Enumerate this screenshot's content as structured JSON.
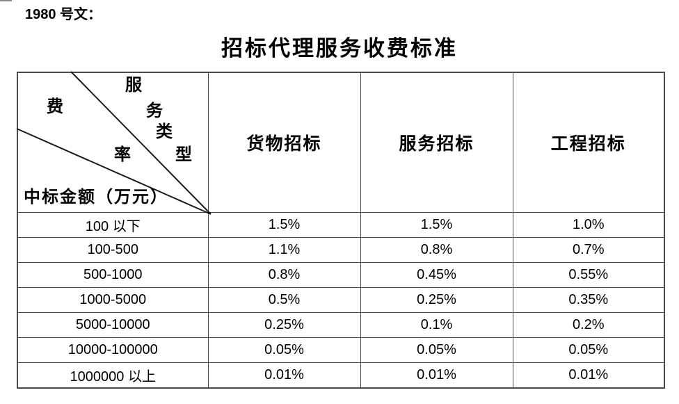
{
  "doc": {
    "ref": "1980 号文：",
    "title": "招标代理服务收费标准"
  },
  "table": {
    "corner": {
      "fee_rate_chars": [
        "费",
        "率"
      ],
      "service_type_chars": [
        "服",
        "务",
        "类",
        "型"
      ],
      "amount_label": "中标金额（万元）"
    },
    "columns": [
      "货物招标",
      "服务招标",
      "工程招标"
    ],
    "rows": [
      {
        "amount": "100 以下",
        "goods": "1.5%",
        "services": "1.5%",
        "engineering": "1.0%"
      },
      {
        "amount": "100-500",
        "goods": "1.1%",
        "services": "0.8%",
        "engineering": "0.7%"
      },
      {
        "amount": "500-1000",
        "goods": "0.8%",
        "services": "0.45%",
        "engineering": "0.55%"
      },
      {
        "amount": "1000-5000",
        "goods": "0.5%",
        "services": "0.25%",
        "engineering": "0.35%"
      },
      {
        "amount": "5000-10000",
        "goods": "0.25%",
        "services": "0.1%",
        "engineering": "0.2%"
      },
      {
        "amount": "10000-100000",
        "goods": "0.05%",
        "services": "0.05%",
        "engineering": "0.05%"
      },
      {
        "amount": "1000000 以上",
        "goods": "0.01%",
        "services": "0.01%",
        "engineering": "0.01%"
      }
    ]
  }
}
